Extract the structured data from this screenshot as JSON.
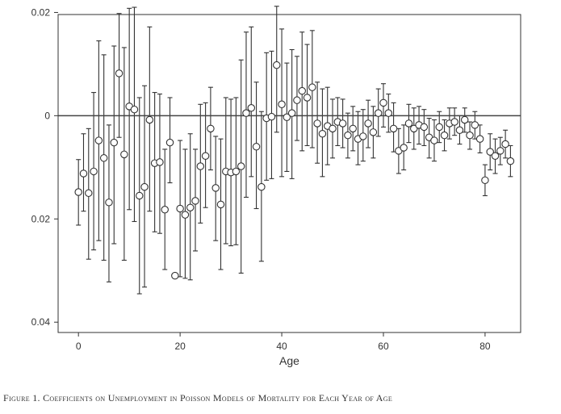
{
  "chart_data": {
    "type": "scatter",
    "xlabel": "Age",
    "ylabel": "",
    "xlim": [
      -4,
      87
    ],
    "ylim": [
      -0.042,
      0.0196
    ],
    "x_ticks": [
      0,
      20,
      40,
      60,
      80
    ],
    "x_tick_labels": [
      "0",
      "20",
      "40",
      "60",
      "80"
    ],
    "y_ticks": [
      0.02,
      0,
      -0.02,
      -0.04
    ],
    "y_tick_labels": [
      "0.02",
      "0",
      "0.02",
      "0.04"
    ],
    "reference_line": 0,
    "grid": false,
    "legend": "none",
    "caption": "Figure 1. Coefficients on Unemployment in Poisson Models of Mortality for Each Year of Age",
    "series": [
      {
        "x": [
          0,
          1,
          2,
          3,
          4,
          5,
          6,
          7,
          8,
          9,
          10,
          11,
          12,
          13,
          14,
          15,
          16,
          17,
          18,
          19,
          20,
          21,
          22,
          23,
          24,
          25,
          26,
          27,
          28,
          29,
          30,
          31,
          32,
          33,
          34,
          35,
          36,
          37,
          38,
          39,
          40,
          41,
          42,
          43,
          44,
          45,
          46,
          47,
          48,
          49,
          50,
          51,
          52,
          53,
          54,
          55,
          56,
          57,
          58,
          59,
          60,
          61,
          62,
          63,
          64,
          65,
          66,
          67,
          68,
          69,
          70,
          71,
          72,
          73,
          74,
          75,
          76,
          77,
          78,
          79,
          80,
          81,
          82,
          83,
          84,
          85
        ],
        "y": [
          -0.0148,
          -0.0112,
          -0.015,
          -0.0108,
          -0.0048,
          -0.0082,
          -0.0168,
          -0.0052,
          0.0082,
          -0.0075,
          0.0018,
          0.0012,
          -0.0155,
          -0.0138,
          -0.0008,
          -0.0092,
          -0.009,
          -0.0182,
          -0.0052,
          -0.031,
          -0.018,
          -0.0192,
          -0.0178,
          -0.0165,
          -0.0098,
          -0.0078,
          -0.0025,
          -0.014,
          -0.0172,
          -0.0108,
          -0.011,
          -0.0108,
          -0.0098,
          0.0005,
          0.0015,
          -0.006,
          -0.0138,
          -0.0005,
          -0.0002,
          0.0098,
          0.0022,
          -0.0003,
          0.0005,
          0.003,
          0.0048,
          0.0035,
          0.0055,
          -0.0015,
          -0.0035,
          -0.002,
          -0.0025,
          -0.0012,
          -0.0015,
          -0.0038,
          -0.0025,
          -0.0045,
          -0.004,
          -0.0015,
          -0.0032,
          0.0005,
          0.0025,
          0.0005,
          -0.0025,
          -0.0068,
          -0.0062,
          -0.0015,
          -0.0025,
          -0.0018,
          -0.0022,
          -0.0042,
          -0.0048,
          -0.0022,
          -0.0038,
          -0.0015,
          -0.0012,
          -0.0028,
          -0.0008,
          -0.0038,
          -0.0018,
          -0.0045,
          -0.0125,
          -0.007,
          -0.0078,
          -0.0068,
          -0.0055,
          -0.0088
        ],
        "y_low": [
          -0.0212,
          -0.0185,
          -0.0278,
          -0.026,
          -0.0242,
          -0.028,
          -0.0322,
          -0.0248,
          -0.0042,
          -0.028,
          -0.0182,
          -0.0205,
          -0.0345,
          -0.0332,
          -0.0185,
          -0.0225,
          -0.0228,
          -0.0298,
          -0.013,
          -0.0312,
          -0.0312,
          -0.0315,
          -0.0318,
          -0.0262,
          -0.0208,
          -0.0178,
          -0.0105,
          -0.0242,
          -0.0298,
          -0.0248,
          -0.0252,
          -0.025,
          -0.0305,
          -0.0158,
          -0.0118,
          -0.018,
          -0.0282,
          -0.0125,
          -0.0122,
          -0.0032,
          -0.0118,
          -0.0108,
          -0.0122,
          -0.0048,
          -0.0068,
          -0.0058,
          -0.0062,
          -0.0092,
          -0.0118,
          -0.0095,
          -0.0082,
          -0.0058,
          -0.0062,
          -0.0082,
          -0.0068,
          -0.0095,
          -0.0088,
          -0.0062,
          -0.0082,
          -0.004,
          -0.0022,
          -0.0032,
          -0.007,
          -0.0112,
          -0.0105,
          -0.0052,
          -0.0065,
          -0.0055,
          -0.0058,
          -0.0082,
          -0.0088,
          -0.0052,
          -0.0068,
          -0.0045,
          -0.0038,
          -0.0055,
          -0.0032,
          -0.0065,
          -0.0045,
          -0.0072,
          -0.0155,
          -0.0105,
          -0.0112,
          -0.0095,
          -0.0082,
          -0.0118
        ],
        "y_high": [
          -0.0085,
          -0.0035,
          -0.0025,
          0.0045,
          0.0145,
          0.0118,
          -0.0018,
          0.0135,
          0.0198,
          0.0132,
          0.0208,
          0.021,
          0.0035,
          0.0058,
          0.0172,
          0.0045,
          0.0042,
          -0.0065,
          0.0035,
          -0.0308,
          -0.0048,
          -0.0065,
          -0.0035,
          -0.0065,
          0.0022,
          0.0025,
          0.0055,
          -0.004,
          -0.0045,
          0.0035,
          0.0032,
          0.0035,
          0.0108,
          0.0162,
          0.0172,
          0.0065,
          0.0008,
          0.0122,
          0.0125,
          0.0212,
          0.0168,
          0.0102,
          0.0128,
          0.0115,
          0.0162,
          0.0138,
          0.0165,
          0.0065,
          0.0052,
          0.0055,
          0.0032,
          0.0035,
          0.0032,
          0.0005,
          0.0018,
          0.0008,
          0.0012,
          0.003,
          0.0018,
          0.0052,
          0.0062,
          0.0042,
          0.0025,
          -0.0025,
          -0.0018,
          0.0022,
          0.0015,
          0.0018,
          0.0012,
          -0.0005,
          -0.0008,
          0.0008,
          -0.0008,
          0.0015,
          0.0015,
          0,
          0.0015,
          -0.0012,
          0.0008,
          -0.0018,
          -0.0095,
          -0.0035,
          -0.0045,
          -0.0042,
          -0.0028,
          -0.0058
        ]
      }
    ]
  }
}
